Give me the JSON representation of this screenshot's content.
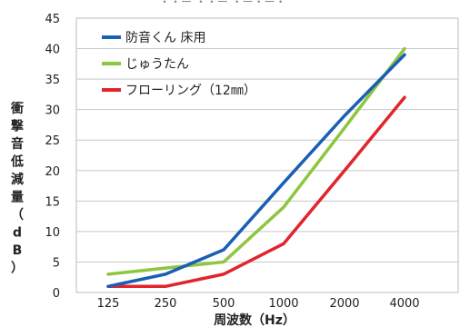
{
  "header_fragment": "・・ー ・・ー ・ー・ー・",
  "chart_data": {
    "type": "line",
    "categories": [
      "125",
      "250",
      "500",
      "1000",
      "2000",
      "4000"
    ],
    "series": [
      {
        "name": "防音くん 床用",
        "color": "#1a5fb4",
        "values": [
          1,
          3,
          7,
          18,
          29,
          39
        ]
      },
      {
        "name": "じゅうたん",
        "color": "#8dc63f",
        "values": [
          3,
          4,
          5,
          14,
          27,
          40
        ]
      },
      {
        "name": "フローリング（12㎜）",
        "color": "#e0252b",
        "values": [
          1,
          1,
          3,
          8,
          20,
          32
        ]
      }
    ],
    "yticks": [
      0,
      5,
      10,
      15,
      20,
      25,
      30,
      35,
      40,
      45
    ],
    "ylim": [
      0,
      45
    ],
    "xlabel": "周波数（Hz）",
    "ylabel": "衝撃音低減量（dB）",
    "grid": true,
    "legend_position": "top-left"
  }
}
